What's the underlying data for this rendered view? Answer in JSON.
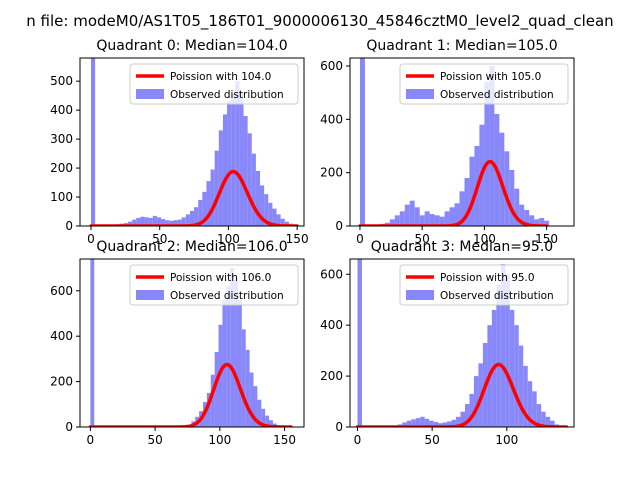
{
  "figure": {
    "suptitle": "n file: modeM0/AS1T05_186T01_9000006130_45846cztM0_level2_quad_clean"
  },
  "colors": {
    "histogram": "#7b7bfa",
    "poisson": "#ff0000",
    "axes": "#000000",
    "background": "#ffffff",
    "legend_border": "#cccccc"
  },
  "chart_data": [
    {
      "type": "bar",
      "title": "Quadrant 0: Median=104.0",
      "xlim": [
        -8,
        155
      ],
      "ylim": [
        0,
        580
      ],
      "xticks": [
        0,
        50,
        100,
        150
      ],
      "yticks": [
        0,
        100,
        200,
        300,
        400,
        500
      ],
      "legend_position": "top-right",
      "bin_width": 3,
      "series": [
        {
          "name": "Observed distribution",
          "kind": "histogram",
          "x": [
            0,
            12,
            15,
            18,
            21,
            24,
            27,
            30,
            33,
            36,
            39,
            42,
            45,
            48,
            51,
            54,
            57,
            60,
            63,
            66,
            69,
            72,
            75,
            78,
            81,
            84,
            87,
            90,
            93,
            96,
            99,
            102,
            105,
            108,
            111,
            114,
            117,
            120,
            123,
            126,
            129,
            132,
            135,
            138,
            141,
            144,
            147
          ],
          "values": [
            580,
            3,
            4,
            6,
            8,
            10,
            15,
            22,
            28,
            32,
            30,
            28,
            35,
            30,
            24,
            20,
            18,
            20,
            22,
            30,
            40,
            52,
            65,
            90,
            118,
            155,
            195,
            260,
            330,
            385,
            430,
            455,
            500,
            460,
            380,
            320,
            250,
            190,
            140,
            110,
            80,
            60,
            40,
            25,
            15,
            8,
            4
          ]
        },
        {
          "name": "Poission with 104.0",
          "kind": "poisson-curve",
          "lambda": 104.0,
          "total": 4800,
          "bin_width": 3,
          "x_range": [
            0,
            150
          ]
        }
      ]
    },
    {
      "type": "bar",
      "title": "Quadrant 1: Median=105.0",
      "xlim": [
        -8,
        172
      ],
      "ylim": [
        0,
        630
      ],
      "xticks": [
        0,
        50,
        100,
        150
      ],
      "yticks": [
        0,
        200,
        400,
        600
      ],
      "legend_position": "top-right",
      "bin_width": 4,
      "series": [
        {
          "name": "Observed distribution",
          "kind": "histogram",
          "x": [
            0,
            16,
            20,
            24,
            28,
            32,
            36,
            40,
            44,
            48,
            52,
            56,
            60,
            64,
            68,
            72,
            76,
            80,
            84,
            88,
            92,
            96,
            100,
            104,
            108,
            112,
            116,
            120,
            124,
            128,
            132,
            136,
            140,
            144,
            148
          ],
          "values": [
            630,
            8,
            12,
            25,
            40,
            55,
            80,
            95,
            70,
            40,
            55,
            45,
            40,
            35,
            55,
            70,
            85,
            130,
            180,
            260,
            300,
            380,
            540,
            600,
            420,
            350,
            280,
            210,
            140,
            80,
            60,
            40,
            25,
            30,
            20
          ]
        },
        {
          "name": "Poission with 105.0",
          "kind": "poisson-curve",
          "lambda": 105.0,
          "total": 6200,
          "bin_width": 4,
          "x_range": [
            0,
            150
          ]
        }
      ]
    },
    {
      "type": "bar",
      "title": "Quadrant 2: Median=106.0",
      "xlim": [
        -8,
        165
      ],
      "ylim": [
        0,
        740
      ],
      "xticks": [
        0,
        50,
        100,
        150
      ],
      "yticks": [
        0,
        200,
        400,
        600
      ],
      "legend_position": "top-right",
      "bin_width": 3,
      "series": [
        {
          "name": "Observed distribution",
          "kind": "histogram",
          "x": [
            0,
            78,
            81,
            84,
            87,
            90,
            93,
            96,
            99,
            102,
            105,
            108,
            111,
            114,
            117,
            120,
            123,
            126,
            129,
            132,
            135,
            138,
            141,
            144,
            147
          ],
          "values": [
            740,
            25,
            45,
            70,
            110,
            150,
            230,
            330,
            450,
            560,
            620,
            700,
            650,
            560,
            430,
            340,
            240,
            180,
            120,
            80,
            50,
            30,
            15,
            8,
            4
          ]
        },
        {
          "name": "Poission with 106.0",
          "kind": "poisson-curve",
          "lambda": 106.0,
          "total": 7100,
          "bin_width": 3,
          "x_range": [
            0,
            155
          ]
        }
      ]
    },
    {
      "type": "bar",
      "title": "Quadrant 3: Median=95.0",
      "xlim": [
        -5,
        145
      ],
      "ylim": [
        0,
        660
      ],
      "xticks": [
        0,
        50,
        100
      ],
      "yticks": [
        0,
        200,
        400,
        600
      ],
      "legend_position": "top-right",
      "bin_width": 3,
      "series": [
        {
          "name": "Observed distribution",
          "kind": "histogram",
          "x": [
            0,
            24,
            27,
            30,
            33,
            36,
            39,
            42,
            45,
            48,
            51,
            54,
            57,
            60,
            63,
            66,
            69,
            72,
            75,
            78,
            81,
            84,
            87,
            90,
            93,
            96,
            99,
            102,
            105,
            108,
            111,
            114,
            117,
            120,
            123,
            126,
            129,
            132
          ],
          "values": [
            660,
            5,
            10,
            18,
            25,
            30,
            35,
            40,
            32,
            25,
            20,
            15,
            18,
            22,
            28,
            40,
            60,
            90,
            130,
            200,
            250,
            330,
            400,
            460,
            560,
            640,
            600,
            460,
            400,
            320,
            240,
            180,
            140,
            90,
            60,
            40,
            25,
            10
          ]
        },
        {
          "name": "Poission with 95.0",
          "kind": "poisson-curve",
          "lambda": 95.0,
          "total": 6000,
          "bin_width": 3,
          "x_range": [
            0,
            140
          ]
        }
      ]
    }
  ]
}
